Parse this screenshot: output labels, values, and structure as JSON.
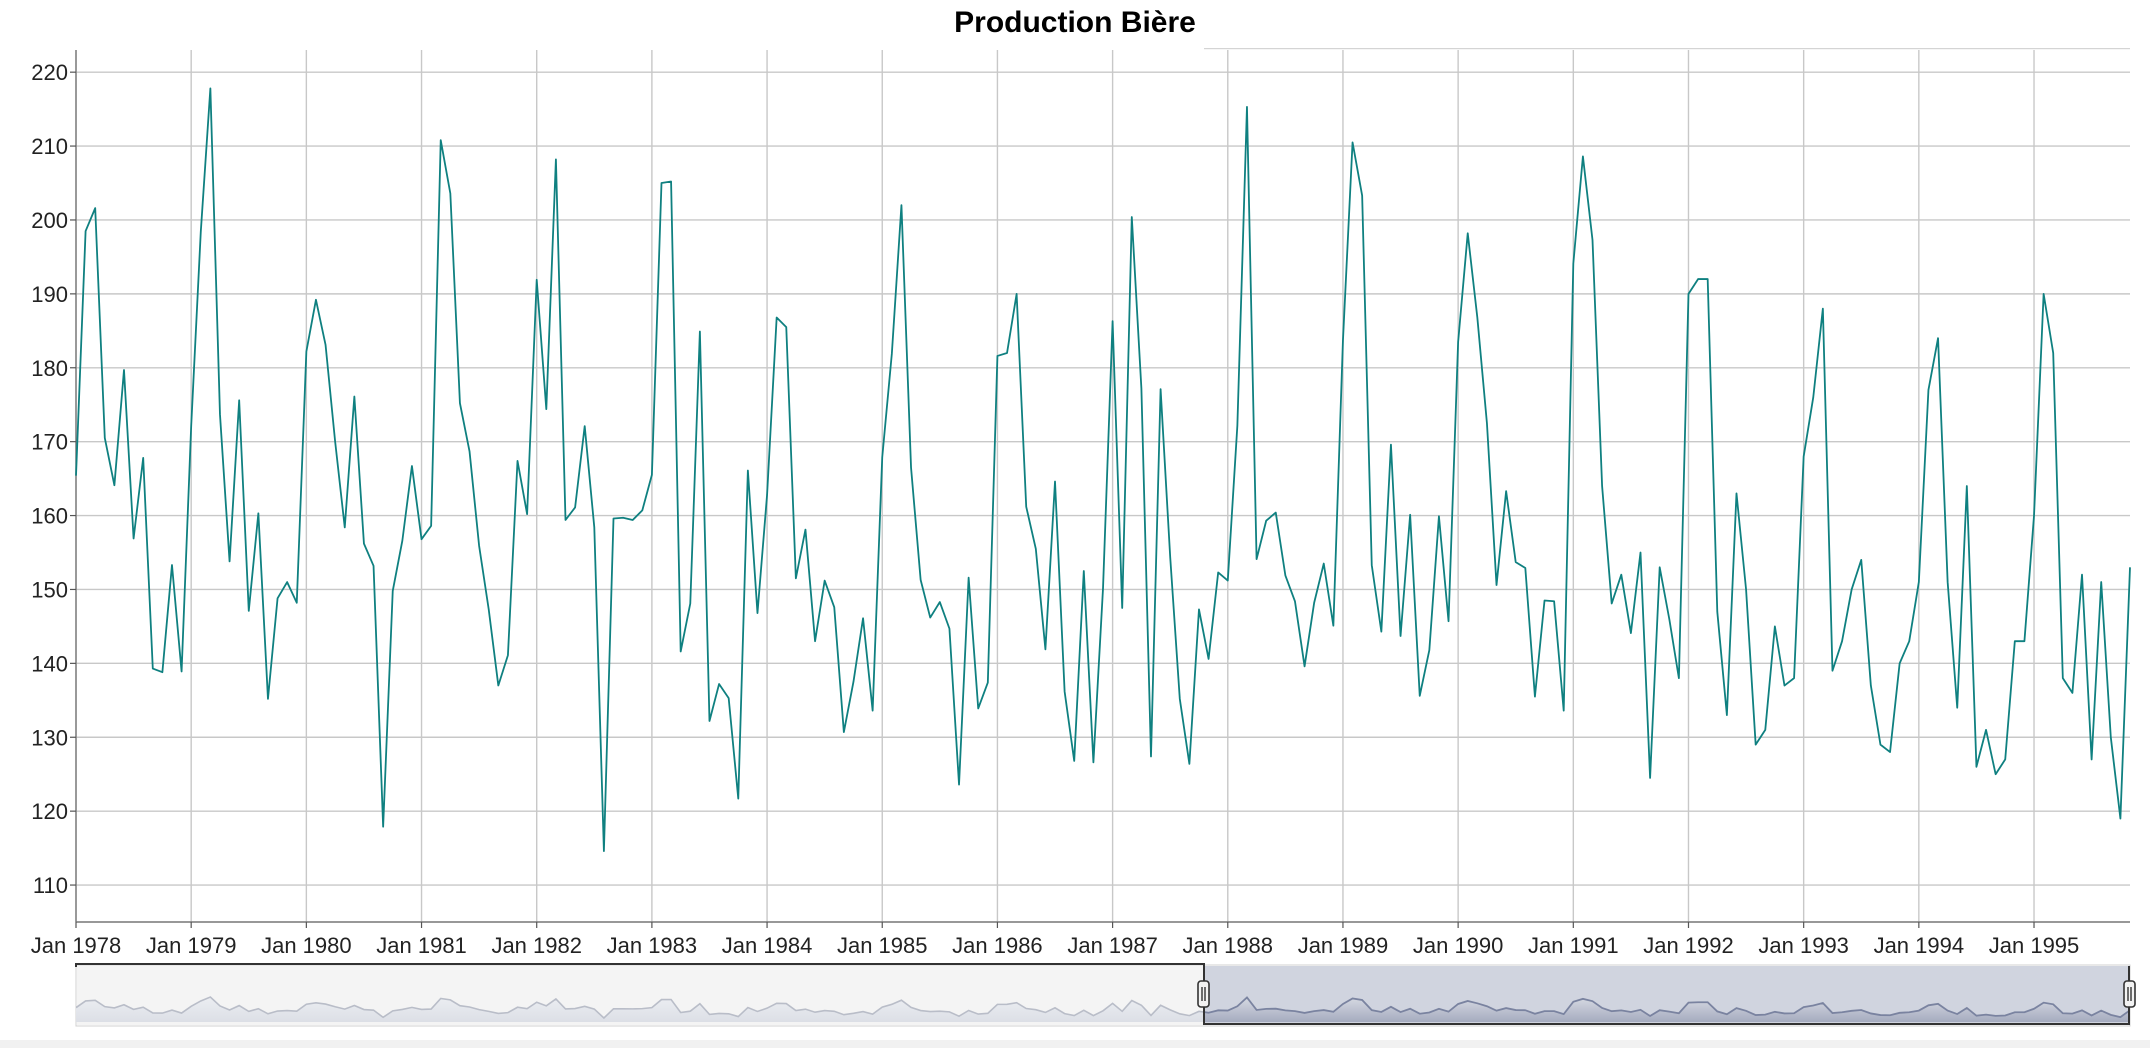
{
  "chart_data": {
    "type": "line",
    "title": "Production Bière",
    "xlabel": "",
    "ylabel": "",
    "x_start": "Jan 1978",
    "frequency": "monthly",
    "ylim": [
      105,
      223
    ],
    "yticks": [
      110,
      120,
      130,
      140,
      150,
      160,
      170,
      180,
      190,
      200,
      210,
      220
    ],
    "xtick_labels": [
      "Jan 1978",
      "Jan 1979",
      "Jan 1980",
      "Jan 1981",
      "Jan 1982",
      "Jan 1983",
      "Jan 1984",
      "Jan 1985",
      "Jan 1986",
      "Jan 1987",
      "Jan 1988",
      "Jan 1989",
      "Jan 1990",
      "Jan 1991",
      "Jan 1992",
      "Jan 1993",
      "Jan 1994",
      "Jan 1995"
    ],
    "grid": true,
    "line_color": "#0f8080",
    "series": [
      {
        "values": [
          165.4,
          198.5,
          201.6,
          170.5,
          164.1,
          179.7,
          156.9,
          167.8,
          139.3,
          138.8,
          153.3,
          138.9,
          172.1,
          198.4,
          217.8,
          173.7,
          153.8,
          175.6,
          147.1,
          160.3,
          135.2,
          148.8,
          151.0,
          148.2,
          182.2,
          189.2,
          183.1,
          170.0,
          158.4,
          176.1,
          156.2,
          153.2,
          117.9,
          149.8,
          156.6,
          166.7,
          156.8,
          158.6,
          210.8,
          203.6,
          175.2,
          168.7,
          155.9,
          147.3,
          137.0,
          141.1,
          167.4,
          160.2,
          191.9,
          174.4,
          208.2,
          159.4,
          161.1,
          172.1,
          158.4,
          114.6,
          159.6,
          159.7,
          159.4,
          160.7,
          165.5,
          205.0,
          205.2,
          141.6,
          148.1,
          184.9,
          132.2,
          137.2,
          135.3,
          121.7,
          166.1,
          146.8,
          162.8,
          186.8,
          185.5,
          151.5,
          158.1,
          143.0,
          151.2,
          147.6,
          130.7,
          137.5,
          146.1,
          133.6,
          167.9,
          181.9,
          202.0,
          166.5,
          151.3,
          146.2,
          148.3,
          144.7,
          123.6,
          151.6,
          133.9,
          137.4,
          181.6,
          182.0,
          190.0,
          161.2,
          155.5,
          141.9,
          164.6,
          136.2,
          126.8,
          152.5,
          126.6,
          150.1,
          186.3,
          147.5,
          200.4,
          177.2,
          127.4,
          177.1,
          154.4,
          135.2,
          126.4,
          147.3,
          140.6,
          152.3,
          151.2,
          172.2,
          215.3,
          154.1,
          159.3,
          160.4,
          151.9,
          148.4,
          139.6,
          148.2,
          153.5,
          145.1,
          183.7,
          210.5,
          203.3,
          153.3,
          144.3,
          169.6,
          143.7,
          160.1,
          135.6,
          141.8,
          159.9,
          145.7,
          183.5,
          198.2,
          186.8,
          172.5,
          150.6,
          163.3,
          153.7,
          152.9,
          135.5,
          148.5,
          148.4,
          133.6,
          194.1,
          208.6,
          197.3,
          164.0,
          148.1,
          152.0,
          144.1,
          155.0,
          124.5,
          153.0,
          146.0,
          138.0,
          190.0,
          192.0,
          192.0,
          147.0,
          133.0,
          163.0,
          150.0,
          129.0,
          131.0,
          145.0,
          137.0,
          138.0,
          168.0,
          176.0,
          188.0,
          139.0,
          143.0,
          150.0,
          154.0,
          137.0,
          129.0,
          128.0,
          140.0,
          143.0,
          151.0,
          177.0,
          184.0,
          151.0,
          134.0,
          164.0,
          126.0,
          131.0,
          125.0,
          127.0,
          143.0,
          143.0,
          160.0,
          190.0,
          182.0,
          138.0,
          136.0,
          152.0,
          127.0,
          151.0,
          130.0,
          119.0,
          153.0
        ]
      }
    ],
    "navigator": {
      "selected_range": [
        "Jun 1987",
        "Aug 1995"
      ]
    }
  }
}
